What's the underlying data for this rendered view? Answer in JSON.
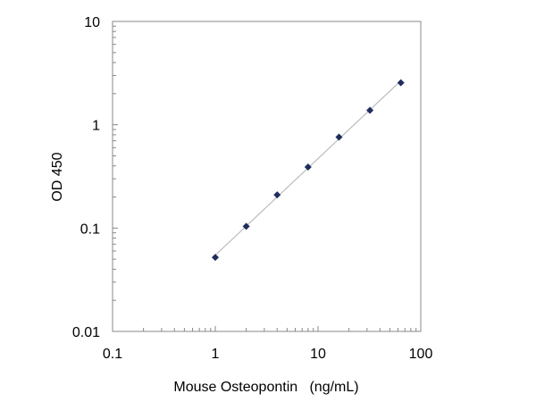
{
  "chart_data": {
    "type": "scatter",
    "xlabel": "Mouse Osteopontin   (ng/mL)",
    "ylabel": "OD 450",
    "xscale": "log",
    "yscale": "log",
    "xlim": [
      0.1,
      100
    ],
    "ylim": [
      0.01,
      10
    ],
    "x_ticks": [
      {
        "value": 0.1,
        "label": "0.1"
      },
      {
        "value": 1,
        "label": "1"
      },
      {
        "value": 10,
        "label": "10"
      },
      {
        "value": 100,
        "label": "100"
      }
    ],
    "y_ticks": [
      {
        "value": 0.01,
        "label": "0.01"
      },
      {
        "value": 0.1,
        "label": "0.1"
      },
      {
        "value": 1,
        "label": "1"
      },
      {
        "value": 10,
        "label": "10"
      }
    ],
    "grid": false,
    "legend": "none",
    "trendline": "power",
    "colors": {
      "marker": "#1f2d5c",
      "trendline": "#b0b0b0",
      "axis": "#888888"
    },
    "series": [
      {
        "marker": "diamond",
        "x": [
          1,
          2,
          4,
          8,
          16,
          32,
          64
        ],
        "y": [
          0.052,
          0.104,
          0.21,
          0.39,
          0.76,
          1.38,
          2.55
        ]
      }
    ]
  }
}
